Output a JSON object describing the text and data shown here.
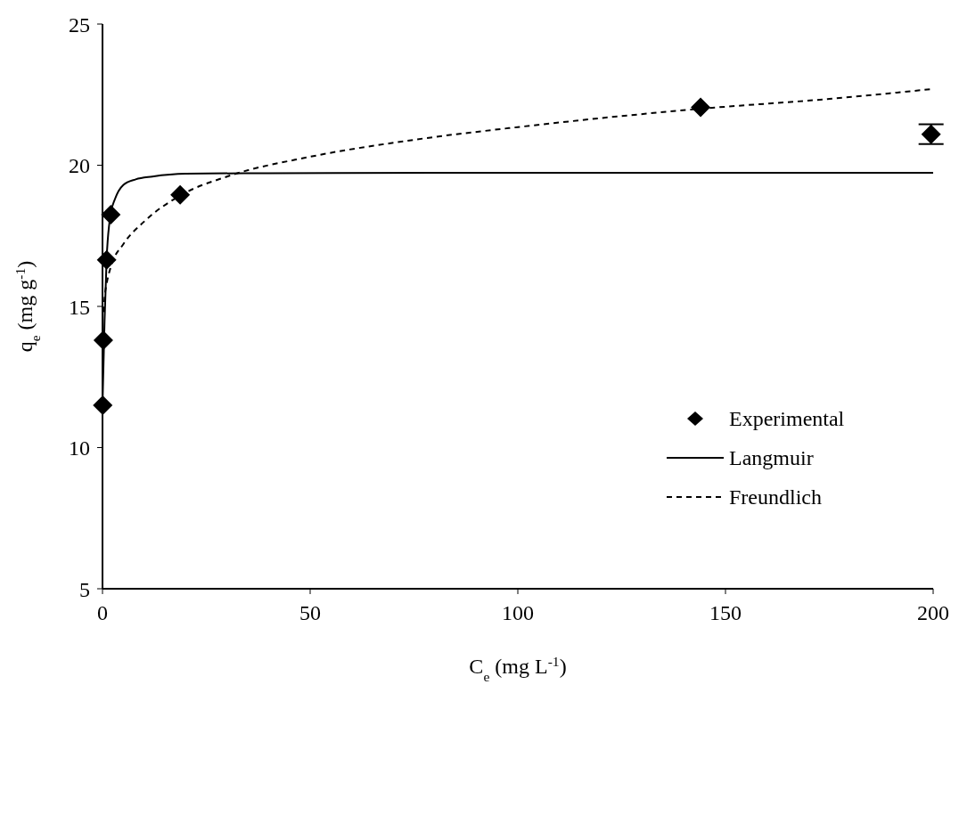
{
  "chart_data": {
    "type": "scatter",
    "xlabel": "C$_{e}$ (mg L$^{-1}$)",
    "ylabel": "q$_{e}$ (mg g$^{-1}$)",
    "xlim": [
      0,
      200
    ],
    "xticks": [
      0,
      50,
      100,
      150,
      200
    ],
    "ylim": [
      5,
      25
    ],
    "yticks": [
      5,
      10,
      15,
      20,
      25
    ],
    "grid": false,
    "legend": "right",
    "series": [
      {
        "name": "Experimental",
        "marker": "diamond",
        "color": "#000000",
        "x": [
          0.05,
          0.2,
          1,
          2,
          18.7,
          144,
          199.5
        ],
        "values": [
          11.5,
          13.8,
          16.65,
          18.25,
          18.95,
          22.05,
          21.1
        ],
        "errors": [
          null,
          null,
          null,
          null,
          null,
          null,
          0.35
        ]
      },
      {
        "name": "Langmuir",
        "type": "line",
        "line_style": "solid",
        "marker": "none",
        "color": "#000000",
        "x": [
          0,
          0.5,
          1,
          2,
          3,
          5,
          8,
          12,
          20,
          40,
          80,
          120,
          160,
          200
        ],
        "values": [
          11.5,
          14.5,
          16.7,
          18.3,
          18.8,
          19.3,
          19.5,
          19.6,
          19.7,
          19.72,
          19.73,
          19.73,
          19.73,
          19.73
        ]
      },
      {
        "name": "Freundlich",
        "type": "line",
        "line_style": "dashed",
        "marker": "none",
        "color": "#000000",
        "x": [
          0.3,
          0.5,
          1,
          2,
          5,
          10,
          19,
          30,
          50,
          75,
          100,
          144,
          175,
          200
        ],
        "values": [
          14.8,
          15.3,
          15.8,
          16.4,
          17.2,
          18.0,
          18.95,
          19.6,
          20.3,
          20.9,
          21.35,
          22.0,
          22.35,
          22.7
        ]
      }
    ]
  }
}
